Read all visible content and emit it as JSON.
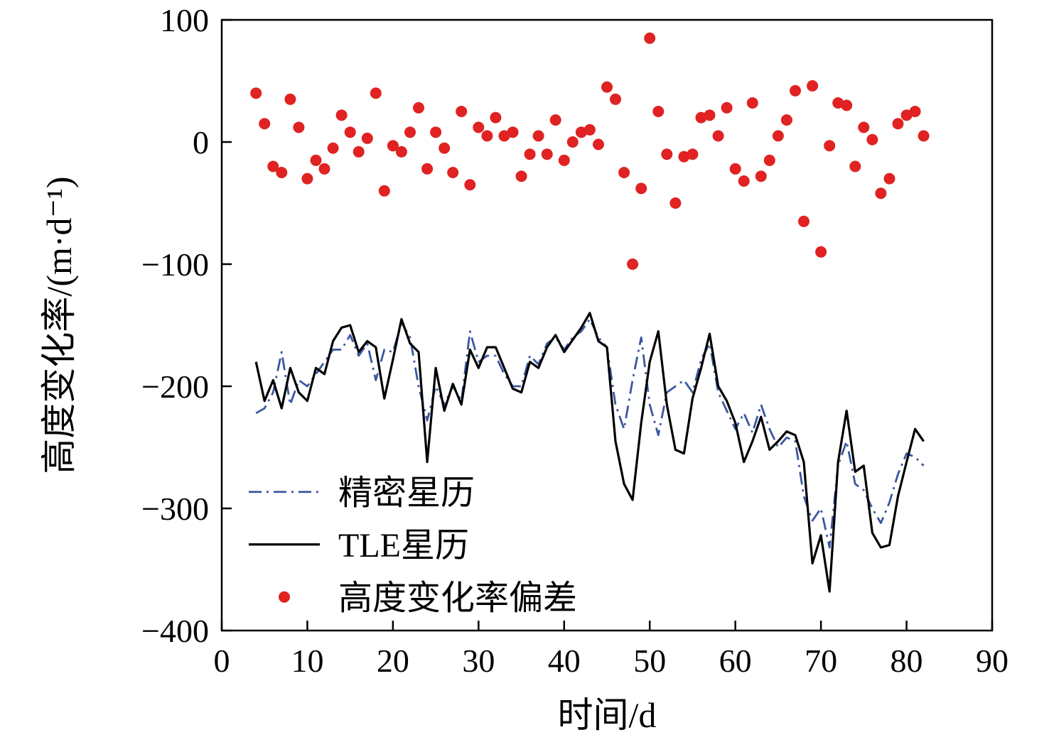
{
  "figure": {
    "background": "#ffffff",
    "frame_color": "#000000"
  },
  "chart_data": {
    "type": "line",
    "title": "",
    "xlabel": "时间/d",
    "ylabel": "高度变化率/(m·d⁻¹)",
    "xlim": [
      0,
      90
    ],
    "ylim": [
      -400,
      100
    ],
    "xticks": [
      0,
      10,
      20,
      30,
      40,
      50,
      60,
      70,
      80,
      90
    ],
    "yticks": [
      100,
      0,
      -100,
      -200,
      -300,
      -400
    ],
    "grid": false,
    "legend": {
      "position": "inside-lower-left",
      "border": false
    },
    "x": [
      4,
      5,
      6,
      7,
      8,
      9,
      10,
      11,
      12,
      13,
      14,
      15,
      16,
      17,
      18,
      19,
      20,
      21,
      22,
      23,
      24,
      25,
      26,
      27,
      28,
      29,
      30,
      31,
      32,
      33,
      34,
      35,
      36,
      37,
      38,
      39,
      40,
      41,
      42,
      43,
      44,
      45,
      46,
      47,
      48,
      49,
      50,
      51,
      52,
      53,
      54,
      55,
      56,
      57,
      58,
      59,
      60,
      61,
      62,
      63,
      64,
      65,
      66,
      67,
      68,
      69,
      70,
      71,
      72,
      73,
      74,
      75,
      76,
      77,
      78,
      79,
      80,
      81,
      82
    ],
    "series": [
      {
        "id": "precise-ephemeris",
        "name": "精密星历",
        "type": "line",
        "style": "dash-dot",
        "color": "#3a57a0",
        "values": [
          -222,
          -218,
          -205,
          -172,
          -215,
          -195,
          -200,
          -190,
          -180,
          -170,
          -170,
          -158,
          -175,
          -165,
          -195,
          -170,
          -172,
          -148,
          -160,
          -200,
          -228,
          -200,
          -215,
          -200,
          -212,
          -155,
          -180,
          -175,
          -175,
          -190,
          -200,
          -200,
          -175,
          -182,
          -165,
          -160,
          -170,
          -160,
          -155,
          -145,
          -160,
          -168,
          -215,
          -235,
          -195,
          -160,
          -215,
          -240,
          -205,
          -200,
          -195,
          -205,
          -178,
          -165,
          -205,
          -220,
          -235,
          -222,
          -238,
          -215,
          -235,
          -250,
          -242,
          -245,
          -290,
          -310,
          -300,
          -332,
          -265,
          -245,
          -280,
          -285,
          -300,
          -312,
          -295,
          -272,
          -255,
          -258,
          -265
        ]
      },
      {
        "id": "tle-ephemeris",
        "name": "TLE星历",
        "type": "line",
        "style": "solid",
        "color": "#000000",
        "values": [
          -180,
          -212,
          -195,
          -218,
          -185,
          -205,
          -212,
          -185,
          -190,
          -163,
          -152,
          -150,
          -172,
          -163,
          -168,
          -210,
          -178,
          -145,
          -165,
          -172,
          -262,
          -185,
          -220,
          -198,
          -215,
          -170,
          -185,
          -168,
          -168,
          -185,
          -202,
          -205,
          -180,
          -185,
          -168,
          -158,
          -172,
          -162,
          -152,
          -140,
          -163,
          -168,
          -245,
          -280,
          -293,
          -230,
          -180,
          -155,
          -215,
          -252,
          -255,
          -210,
          -185,
          -157,
          -200,
          -212,
          -230,
          -262,
          -245,
          -225,
          -252,
          -245,
          -237,
          -240,
          -262,
          -345,
          -322,
          -368,
          -262,
          -220,
          -270,
          -265,
          -320,
          -332,
          -330,
          -290,
          -262,
          -235,
          -245
        ]
      },
      {
        "id": "altitude-rate-deviation",
        "name": "高度变化率偏差",
        "type": "scatter",
        "style": "dot",
        "color": "#e02222",
        "values": [
          40,
          15,
          -20,
          -25,
          35,
          12,
          -30,
          -15,
          -22,
          -5,
          22,
          8,
          -8,
          3,
          40,
          -40,
          -3,
          -8,
          8,
          28,
          -22,
          8,
          -5,
          -25,
          25,
          -35,
          12,
          5,
          20,
          5,
          8,
          -28,
          -10,
          5,
          -10,
          18,
          -15,
          0,
          8,
          10,
          -2,
          45,
          35,
          -25,
          -100,
          -38,
          85,
          25,
          -10,
          -50,
          -12,
          -10,
          20,
          22,
          5,
          28,
          -22,
          -32,
          32,
          -28,
          -15,
          5,
          18,
          42,
          -65,
          46,
          -90,
          -3,
          32,
          30,
          -20,
          12,
          2,
          -42,
          -30,
          15,
          22,
          25,
          5
        ]
      }
    ]
  }
}
